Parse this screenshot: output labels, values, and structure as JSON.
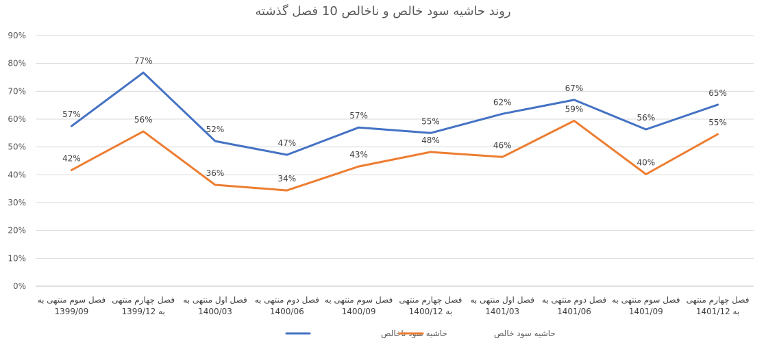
{
  "chart_data": {
    "type": "line",
    "title": "روند حاشیه سود خالص و ناخالص 10 فصل گذشته",
    "xlabel": "",
    "ylabel": "",
    "ylim": [
      0,
      90
    ],
    "y_ticks": [
      "0%",
      "10%",
      "20%",
      "30%",
      "40%",
      "50%",
      "60%",
      "70%",
      "80%",
      "90%"
    ],
    "grid": true,
    "legend_position": "bottom",
    "categories": [
      [
        "فصل سوم منتهی به",
        "1399/09"
      ],
      [
        "فصل چهارم منتهی",
        "به 1399/12"
      ],
      [
        "فصل اول منتهی به",
        "1400/03"
      ],
      [
        "فصل دوم منتهی به",
        "1400/06"
      ],
      [
        "فصل سوم منتهی به",
        "1400/09"
      ],
      [
        "فصل چهارم منتهی",
        "به 1400/12"
      ],
      [
        "فصل اول منتهی به",
        "1401/03"
      ],
      [
        "فصل دوم منتهی به",
        "1401/06"
      ],
      [
        "فصل سوم منتهی به",
        "1401/09"
      ],
      [
        "فصل چهارم منتهی",
        "به 1401/12"
      ]
    ],
    "series": [
      {
        "name": "حاشیه سود ناخالص",
        "color": "#4472C4",
        "values": [
          57.5,
          76.7,
          52.1,
          47.2,
          57.0,
          55.0,
          61.9,
          66.9,
          56.3,
          65.2
        ],
        "labels": [
          "57%",
          "77%",
          "52%",
          "47%",
          "57%",
          "55%",
          "62%",
          "67%",
          "56%",
          "65%"
        ]
      },
      {
        "name": "حاشیه سود خالص",
        "color": "#ED7D31",
        "values": [
          41.7,
          55.6,
          36.4,
          34.4,
          43.0,
          48.2,
          46.4,
          59.4,
          40.2,
          54.6
        ],
        "labels": [
          "42%",
          "56%",
          "36%",
          "34%",
          "43%",
          "48%",
          "46%",
          "59%",
          "40%",
          "55%"
        ]
      }
    ]
  }
}
